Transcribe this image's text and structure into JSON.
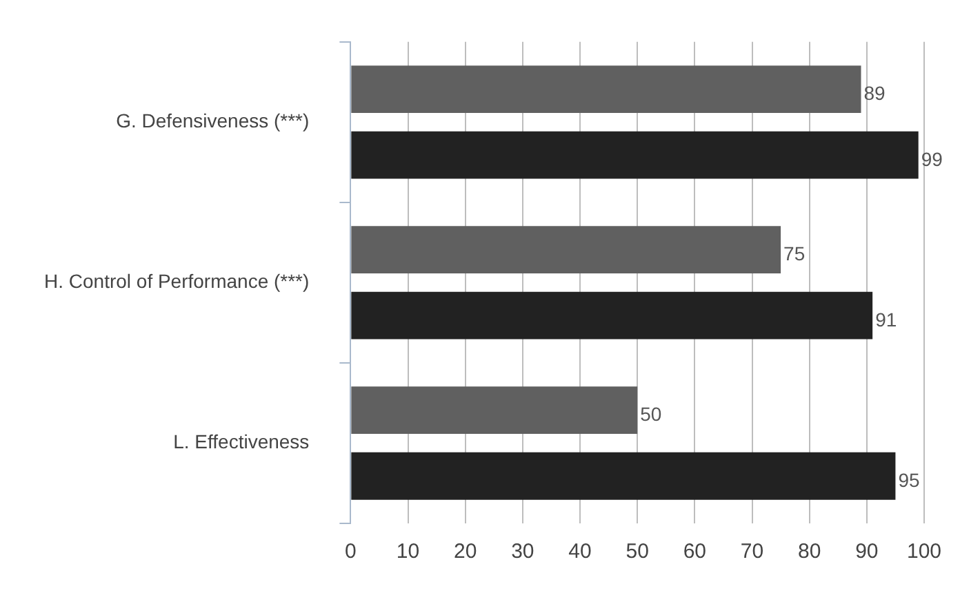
{
  "chart_data": {
    "type": "bar",
    "orientation": "horizontal",
    "categories": [
      "G. Defensiveness (***)",
      "H. Control of Performance (***)",
      "L. Effectiveness"
    ],
    "series": [
      {
        "color": "#606060",
        "values": [
          89,
          75,
          50
        ]
      },
      {
        "color": "#222222",
        "values": [
          99,
          91,
          95
        ]
      }
    ],
    "xlim": [
      0,
      100
    ],
    "xticks": [
      0,
      10,
      20,
      30,
      40,
      50,
      60,
      70,
      80,
      90,
      100
    ],
    "grid": "x",
    "legend": false,
    "data_labels": true
  }
}
